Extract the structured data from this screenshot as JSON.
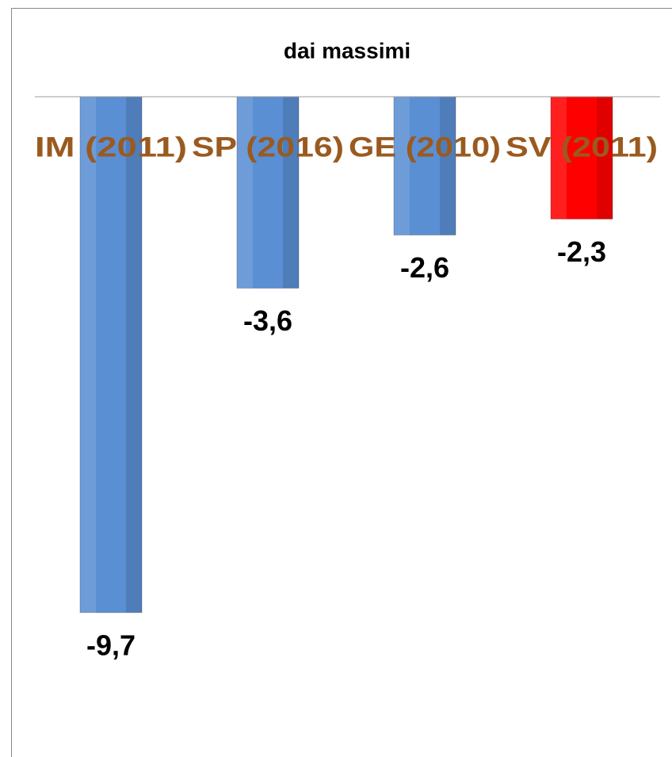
{
  "chart_data": {
    "type": "bar",
    "title": "dai massimi",
    "categories": [
      "IM (2011)",
      "SP (2016)",
      "GE (2010)",
      "SV (2011)"
    ],
    "values": [
      -9.7,
      -3.6,
      -2.6,
      -2.3
    ],
    "value_labels": [
      "-9,7",
      "-3,6",
      "-2,6",
      "-2,3"
    ],
    "colors": [
      "#5b8fd4",
      "#5b8fd4",
      "#5b8fd4",
      "#ff0000"
    ],
    "ylim": [
      -11,
      0
    ]
  }
}
